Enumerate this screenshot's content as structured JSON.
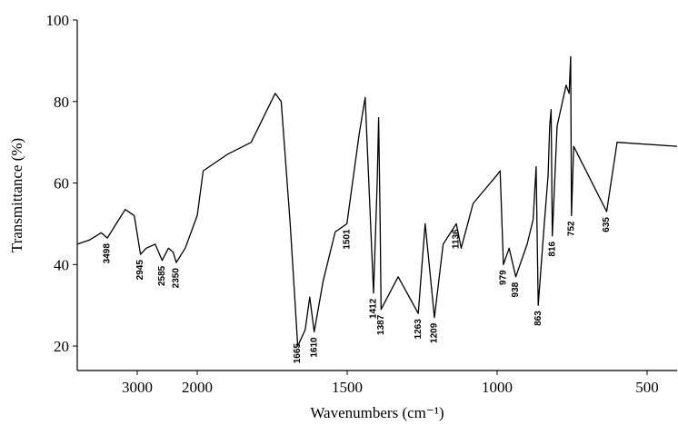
{
  "chart_data": {
    "type": "line",
    "x_label": "Wavenumbers (cm⁻¹)",
    "y_label": "Transmittance (%)",
    "x": [
      4000,
      3800,
      3600,
      3498,
      3350,
      3200,
      3050,
      2945,
      2850,
      2700,
      2585,
      2480,
      2400,
      2350,
      2200,
      2000,
      1980,
      1900,
      1820,
      1780,
      1740,
      1720,
      1690,
      1665,
      1640,
      1625,
      1610,
      1580,
      1540,
      1501,
      1460,
      1440,
      1425,
      1412,
      1400,
      1395,
      1390,
      1387,
      1330,
      1263,
      1240,
      1209,
      1180,
      1136,
      1120,
      1080,
      1000,
      990,
      979,
      960,
      938,
      900,
      880,
      870,
      863,
      845,
      830,
      825,
      820,
      816,
      800,
      770,
      760,
      755,
      752,
      745,
      635,
      600,
      400
    ],
    "values": [
      45,
      46,
      47.8,
      46.5,
      50,
      53.5,
      52,
      42.5,
      44,
      45,
      41,
      44,
      43,
      40.5,
      44,
      52,
      63,
      67,
      70,
      76,
      82,
      80,
      50,
      20,
      24,
      32,
      23.5,
      36,
      48,
      50,
      72,
      81,
      55,
      33,
      60,
      76,
      50,
      29,
      37,
      28,
      50,
      27,
      45,
      50,
      44,
      55,
      62,
      63,
      40,
      44,
      37,
      45,
      51,
      64,
      30,
      48,
      62,
      74,
      78,
      47,
      74,
      84,
      82,
      91,
      52,
      69,
      53,
      70,
      69
    ],
    "color": "#000000",
    "peak_labels": [
      3498,
      2945,
      2585,
      2350,
      1665,
      1610,
      1501,
      1412,
      1387,
      1263,
      1209,
      1136,
      979,
      938,
      863,
      816,
      752,
      635
    ],
    "xlim": [
      4000,
      400
    ],
    "xticks": [
      3000,
      2000,
      1500,
      1000,
      500
    ],
    "ylim": [
      14,
      100
    ],
    "yticks": [
      20,
      40,
      60,
      80,
      100
    ]
  }
}
